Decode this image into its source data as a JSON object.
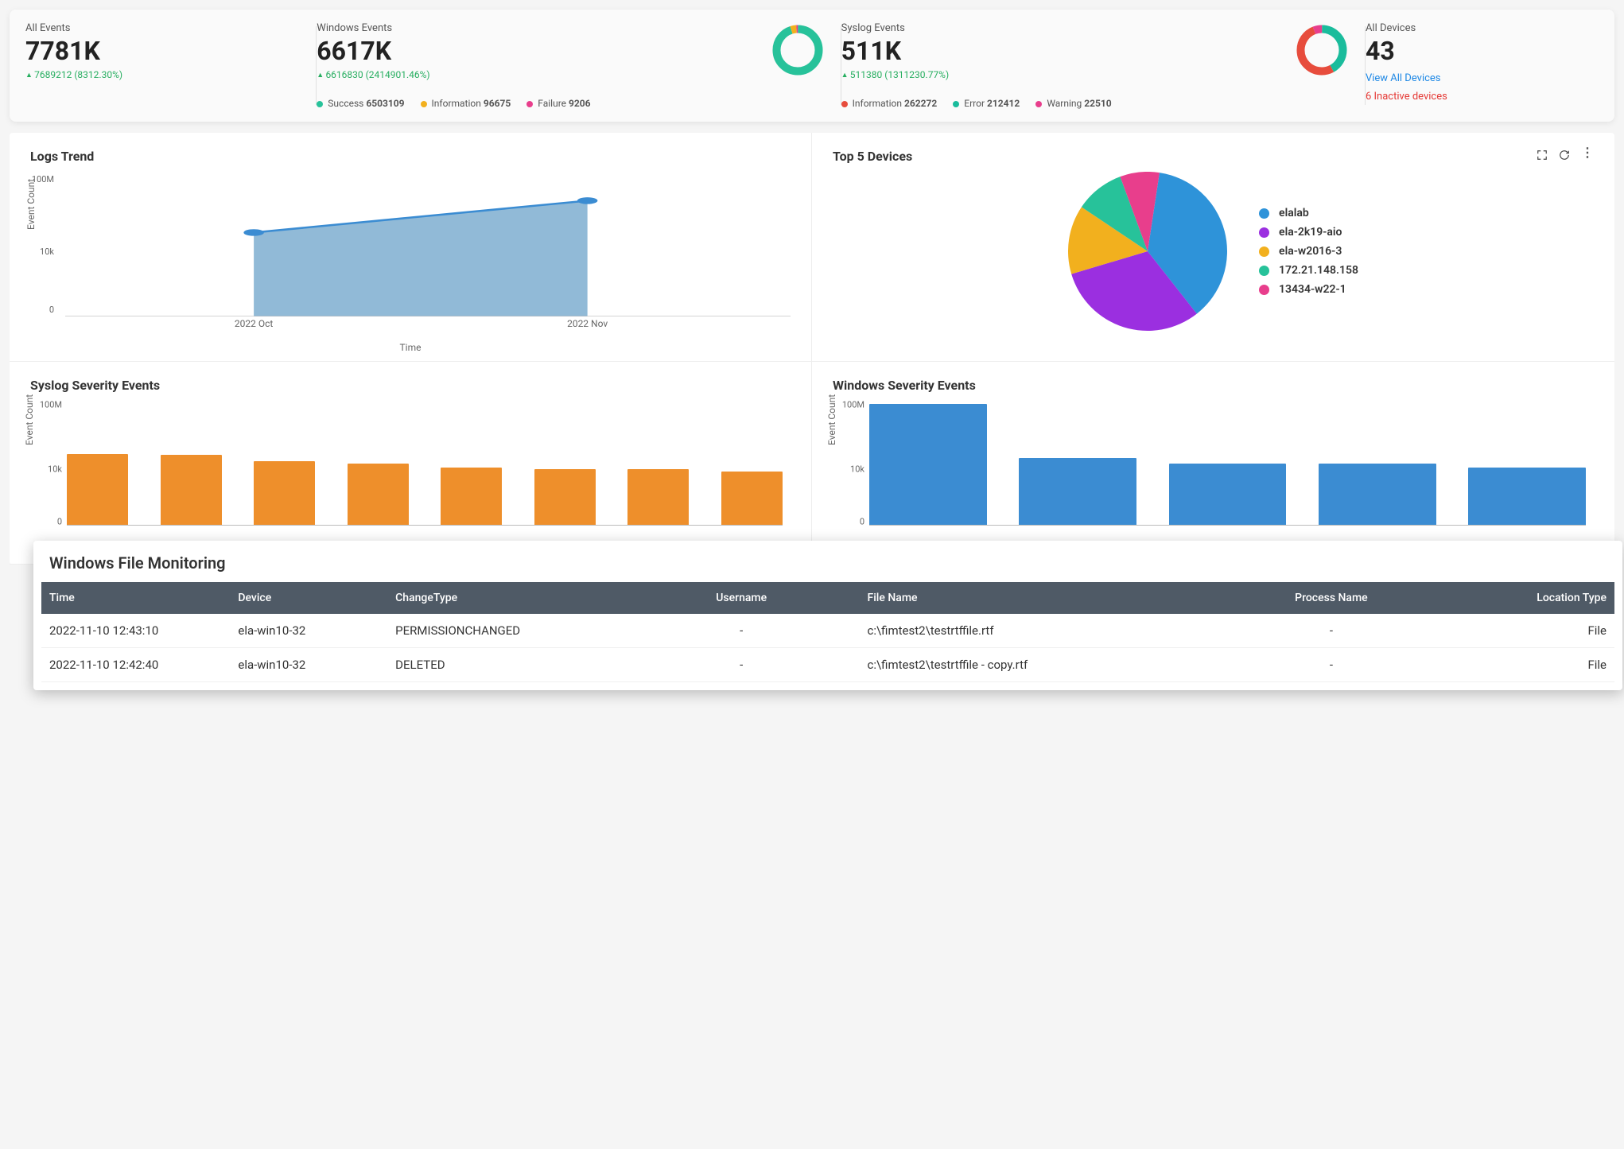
{
  "colors": {
    "green": "#27c29a",
    "yellow": "#f2b01e",
    "pink": "#e83e8c",
    "red": "#e74c3c",
    "teal": "#1abc9c",
    "blue_link": "#1e88e5",
    "orange_bar": "#ee8f2b",
    "blue_bar": "#3b8cd2",
    "area_fill": "#7eaed0",
    "area_stroke": "#3b8cd2",
    "purple": "#9b2fe0",
    "pie_blue": "#2e93d9",
    "pie_purple": "#9b2fe0",
    "pie_yellow": "#f2b01e",
    "pie_green": "#27c29a",
    "pie_pink": "#e83e8c",
    "table_header": "#4f5a66"
  },
  "stats": {
    "all_events": {
      "label": "All Events",
      "value": "7781K",
      "delta": "7689212 (8312.30%)"
    },
    "windows_events": {
      "label": "Windows Events",
      "value": "6617K",
      "delta": "6616830 (2414901.46%)",
      "legend": [
        {
          "label": "Success",
          "value": "6503109",
          "color": "#27c29a"
        },
        {
          "label": "Information",
          "value": "96675",
          "color": "#f2b01e"
        },
        {
          "label": "Failure",
          "value": "9206",
          "color": "#e83e8c"
        }
      ],
      "donut": [
        {
          "color": "#27c29a",
          "pct": 95
        },
        {
          "color": "#f2b01e",
          "pct": 4
        },
        {
          "color": "#e83e8c",
          "pct": 1
        }
      ]
    },
    "syslog_events": {
      "label": "Syslog Events",
      "value": "511K",
      "delta": "511380 (1311230.77%)",
      "legend": [
        {
          "label": "Information",
          "value": "262272",
          "color": "#e74c3c"
        },
        {
          "label": "Error",
          "value": "212412",
          "color": "#1abc9c"
        },
        {
          "label": "Warning",
          "value": "22510",
          "color": "#e83e8c"
        }
      ],
      "donut": [
        {
          "color": "#1abc9c",
          "pct": 42
        },
        {
          "color": "#e74c3c",
          "pct": 52
        },
        {
          "color": "#e83e8c",
          "pct": 6
        }
      ]
    },
    "all_devices": {
      "label": "All Devices",
      "value": "43",
      "link": "View All Devices",
      "warn": "6 Inactive devices"
    }
  },
  "logs_trend": {
    "title": "Logs Trend",
    "y_label": "Event Count",
    "x_label": "Time",
    "y_ticks": [
      "100M",
      "10k",
      "0"
    ],
    "x_ticks": [
      "2022 Oct",
      "2022 Nov"
    ],
    "points": [
      {
        "x": 0.26,
        "y": 0.58
      },
      {
        "x": 0.72,
        "y": 0.8
      }
    ]
  },
  "top_devices": {
    "title": "Top 5 Devices",
    "slices": [
      {
        "label": "elalab",
        "color": "#2e93d9",
        "pct": 37
      },
      {
        "label": "ela-2k19-aio",
        "color": "#9b2fe0",
        "pct": 31
      },
      {
        "label": "ela-w2016-3",
        "color": "#f2b01e",
        "pct": 14
      },
      {
        "label": "172.21.148.158",
        "color": "#27c29a",
        "pct": 10
      },
      {
        "label": "13434-w22-1",
        "color": "#e83e8c",
        "pct": 8
      }
    ]
  },
  "syslog_severity": {
    "title": "Syslog Severity Events",
    "y_label": "Event Count",
    "y_ticks": [
      "100M",
      "10k",
      "0"
    ],
    "values": [
      38000,
      34000,
      14000,
      10000,
      5200,
      4200,
      4000,
      3000
    ],
    "color": "#ee8f2b",
    "max_log": 8
  },
  "windows_severity": {
    "title": "Windows Severity Events",
    "y_label": "Event Count",
    "y_ticks": [
      "100M",
      "10k",
      "0"
    ],
    "values": [
      62000000,
      21000,
      9500,
      9000,
      5000
    ],
    "color": "#3b8cd2",
    "max_log": 8
  },
  "file_monitoring": {
    "title": "Windows File Monitoring",
    "columns": [
      "Time",
      "Device",
      "ChangeType",
      "Username",
      "File Name",
      "Process Name",
      "Location Type"
    ],
    "rows": [
      [
        "2022-11-10 12:43:10",
        "ela-win10-32",
        "PERMISSIONCHANGED",
        "-",
        "c:\\fimtest2\\testrtffile.rtf",
        "-",
        "File"
      ],
      [
        "2022-11-10 12:42:40",
        "ela-win10-32",
        "DELETED",
        "-",
        "c:\\fimtest2\\testrtffile - copy.rtf",
        "-",
        "File"
      ]
    ]
  }
}
